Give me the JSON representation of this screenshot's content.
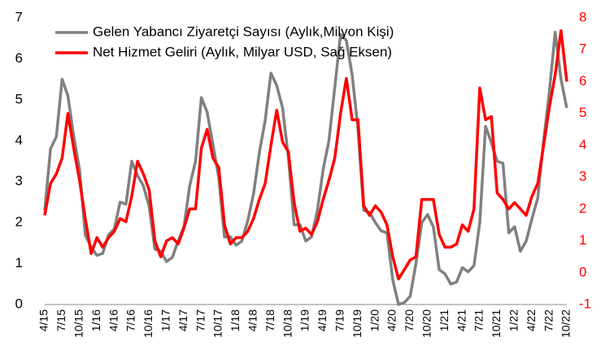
{
  "chart_data": {
    "type": "line",
    "categories": [
      "4/15",
      null,
      null,
      "7/15",
      null,
      null,
      "10/15",
      null,
      null,
      "1/16",
      null,
      null,
      "4/16",
      null,
      null,
      "7/16",
      null,
      null,
      "10/16",
      null,
      null,
      "1/17",
      null,
      null,
      "4/17",
      null,
      null,
      "7/17",
      null,
      null,
      "10/17",
      null,
      null,
      "1/18",
      null,
      null,
      "4/18",
      null,
      null,
      "7/18",
      null,
      null,
      "10/18",
      null,
      null,
      "1/19",
      null,
      null,
      "4/19",
      null,
      null,
      "7/19",
      null,
      null,
      "10/19",
      null,
      null,
      "1/20",
      null,
      null,
      "4/20",
      null,
      null,
      "7/20",
      null,
      null,
      "10/20",
      null,
      null,
      "1/21",
      null,
      null,
      "4/21",
      null,
      null,
      "7/21",
      null,
      null,
      "10/21",
      null,
      null,
      "1/22",
      null,
      null,
      "4/22",
      null,
      null,
      "7/22",
      null,
      null,
      "10/22"
    ],
    "series": [
      {
        "name": "Gelen Yabancı Ziyaretçi Sayısı (Aylık,Milyon Kişi)",
        "color": "#808080",
        "axis": "y",
        "values": [
          2.3,
          3.8,
          4.1,
          5.5,
          5.1,
          4.1,
          3.3,
          1.7,
          1.4,
          1.2,
          1.25,
          1.7,
          1.85,
          2.5,
          2.45,
          3.5,
          3.15,
          2.9,
          2.4,
          1.35,
          1.3,
          1.05,
          1.15,
          1.55,
          1.9,
          2.9,
          3.5,
          5.05,
          4.7,
          3.9,
          3.1,
          1.65,
          1.65,
          1.45,
          1.55,
          2.05,
          2.7,
          3.7,
          4.5,
          5.65,
          5.35,
          4.8,
          3.6,
          1.95,
          1.95,
          1.55,
          1.65,
          2.3,
          3.3,
          4.0,
          5.3,
          6.6,
          6.45,
          5.6,
          4.3,
          2.3,
          2.25,
          2.0,
          1.8,
          1.75,
          0.6,
          0.0,
          0.05,
          0.2,
          1.0,
          2.0,
          2.2,
          1.9,
          0.85,
          0.75,
          0.5,
          0.55,
          0.9,
          0.8,
          0.95,
          2.0,
          4.35,
          3.95,
          3.5,
          3.45,
          1.75,
          1.9,
          1.3,
          1.55,
          2.1,
          2.6,
          4.0,
          5.2,
          6.65,
          5.5,
          4.8
        ]
      },
      {
        "name": "Net Hizmet Geliri (Aylık, Milyar USD, Sağ Eksen)",
        "color": "#ff0000",
        "axis": "y2",
        "values": [
          1.8,
          2.8,
          3.1,
          3.6,
          5.0,
          3.9,
          2.9,
          1.7,
          0.6,
          1.1,
          0.8,
          1.1,
          1.3,
          1.7,
          1.6,
          2.4,
          3.5,
          3.1,
          2.6,
          1.0,
          0.5,
          1.0,
          1.1,
          0.9,
          1.4,
          2.0,
          2.0,
          3.9,
          4.5,
          3.6,
          3.3,
          1.5,
          0.9,
          1.1,
          1.1,
          1.3,
          1.7,
          2.3,
          2.8,
          4.0,
          5.1,
          4.1,
          3.8,
          2.2,
          1.3,
          1.4,
          1.2,
          1.6,
          2.3,
          2.9,
          3.6,
          5.0,
          6.1,
          4.8,
          4.8,
          2.1,
          1.8,
          2.1,
          1.9,
          1.5,
          0.5,
          -0.2,
          0.1,
          0.4,
          0.5,
          2.3,
          2.3,
          2.3,
          1.2,
          0.8,
          0.8,
          0.9,
          1.5,
          1.3,
          2.0,
          5.8,
          4.8,
          4.9,
          2.5,
          2.3,
          2.0,
          2.2,
          2.0,
          1.8,
          2.4,
          2.8,
          4.0,
          5.2,
          6.2,
          7.6,
          6.0
        ]
      }
    ],
    "ylim": [
      0,
      7
    ],
    "yticks": [
      0,
      1,
      2,
      3,
      4,
      5,
      6,
      7
    ],
    "y2lim": [
      -1,
      8
    ],
    "y2ticks": [
      -1,
      0,
      1,
      2,
      3,
      4,
      5,
      6,
      7,
      8
    ],
    "y2_color": "#ff0000",
    "legend": "top-left",
    "grid": false
  }
}
